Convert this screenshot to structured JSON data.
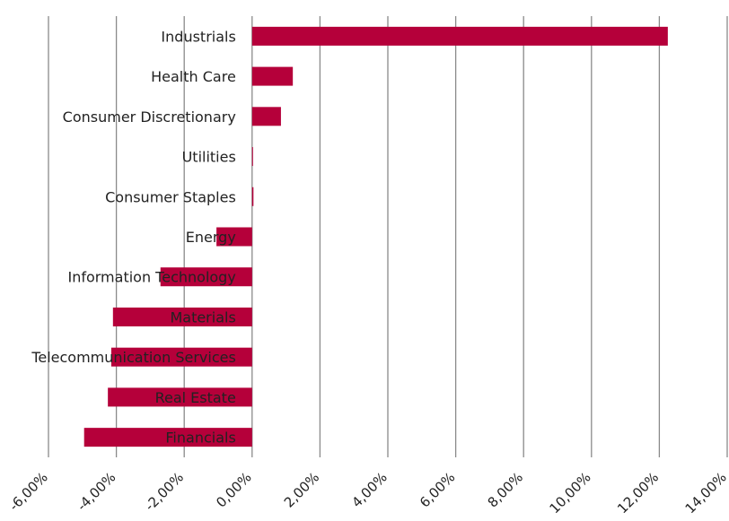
{
  "chart_data": {
    "type": "bar",
    "orientation": "horizontal",
    "categories": [
      "Industrials",
      "Health Care",
      "Consumer Discretionary",
      "Utilities",
      "Consumer Staples",
      "Energy",
      "Information Technology",
      "Materials",
      "Telecommunication Services",
      "Real Estate",
      "Financials"
    ],
    "values": [
      12.25,
      1.2,
      0.85,
      0.02,
      0.04,
      -1.05,
      -2.7,
      -4.1,
      -4.15,
      -4.25,
      -4.95
    ],
    "xlim": [
      -6,
      14
    ],
    "x_ticks": [
      -6,
      -4,
      -2,
      0,
      2,
      4,
      6,
      8,
      10,
      12,
      14
    ],
    "x_tick_labels": [
      "-6,00%",
      "-4,00%",
      "-2,00%",
      "0,00%",
      "2,00%",
      "4,00%",
      "6,00%",
      "8,00%",
      "10,00%",
      "12,00%",
      "14,00%"
    ],
    "grid": "vertical",
    "legend": "none",
    "title": "",
    "xlabel": "",
    "ylabel": "",
    "bar_color": "#b5003a",
    "grid_color": "#8a8a8a"
  }
}
